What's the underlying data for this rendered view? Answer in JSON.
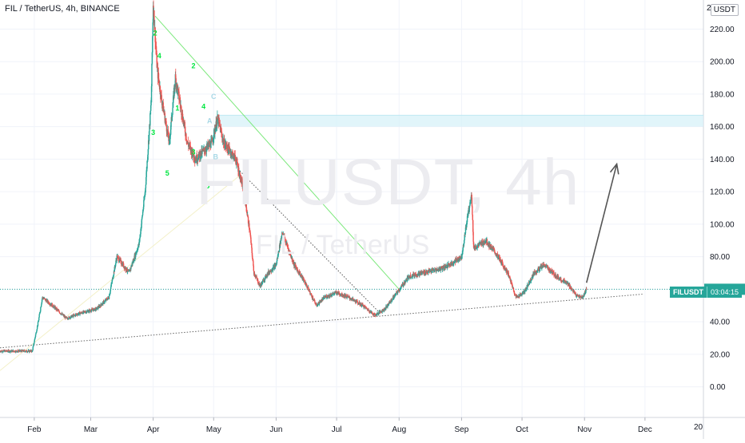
{
  "header": {
    "symbol_title": "FIL / TetherUS, 4h, BINANCE",
    "currency": "USDT",
    "top_axis_clip": "2"
  },
  "watermark": {
    "main": "FILUSDT, 4h",
    "sub": "FIL / TetherUS"
  },
  "price_badge": {
    "symbol": "FILUSDT",
    "countdown": "03:04:15"
  },
  "footer_clip": "20",
  "colors": {
    "up": "#26a69a",
    "down": "#ef5350",
    "grid": "#f0f3fa",
    "resistance_zone": "#d4f1f8",
    "wave_label": "#00e640"
  },
  "chart_data": {
    "type": "candlestick",
    "symbol": "FIL / TetherUS",
    "timeframe": "4h",
    "exchange": "BINANCE",
    "x_ticks": [
      "Feb",
      "Mar",
      "Apr",
      "May",
      "Jun",
      "Jul",
      "Aug",
      "Sep",
      "Oct",
      "Nov",
      "Dec"
    ],
    "y_ticks": [
      "0.00",
      "20.00",
      "40.00",
      "60.00",
      "80.00",
      "100.00",
      "120.00",
      "140.00",
      "160.00",
      "180.00",
      "200.00",
      "220.00"
    ],
    "ylim": [
      -10,
      232
    ],
    "last_price": 60.0,
    "price_path": [
      [
        "2021-01-15",
        22
      ],
      [
        "2021-01-31",
        22
      ],
      [
        "2021-02-03",
        40
      ],
      [
        "2021-02-05",
        55
      ],
      [
        "2021-02-10",
        50
      ],
      [
        "2021-02-17",
        42
      ],
      [
        "2021-02-23",
        45
      ],
      [
        "2021-03-04",
        48
      ],
      [
        "2021-03-10",
        55
      ],
      [
        "2021-03-14",
        80
      ],
      [
        "2021-03-20",
        70
      ],
      [
        "2021-03-25",
        88
      ],
      [
        "2021-03-28",
        120
      ],
      [
        "2021-03-31",
        175
      ],
      [
        "2021-04-01",
        236
      ],
      [
        "2021-04-03",
        195
      ],
      [
        "2021-04-05",
        178
      ],
      [
        "2021-04-09",
        150
      ],
      [
        "2021-04-12",
        190
      ],
      [
        "2021-04-15",
        170
      ],
      [
        "2021-04-18",
        150
      ],
      [
        "2021-04-22",
        140
      ],
      [
        "2021-04-26",
        145
      ],
      [
        "2021-04-30",
        150
      ],
      [
        "2021-05-03",
        165
      ],
      [
        "2021-05-06",
        150
      ],
      [
        "2021-05-12",
        140
      ],
      [
        "2021-05-16",
        120
      ],
      [
        "2021-05-19",
        95
      ],
      [
        "2021-05-21",
        70
      ],
      [
        "2021-05-24",
        62
      ],
      [
        "2021-05-28",
        70
      ],
      [
        "2021-06-01",
        75
      ],
      [
        "2021-06-04",
        95
      ],
      [
        "2021-06-10",
        75
      ],
      [
        "2021-06-15",
        65
      ],
      [
        "2021-06-21",
        50
      ],
      [
        "2021-06-25",
        55
      ],
      [
        "2021-07-01",
        58
      ],
      [
        "2021-07-07",
        55
      ],
      [
        "2021-07-14",
        50
      ],
      [
        "2021-07-20",
        44
      ],
      [
        "2021-07-25",
        48
      ],
      [
        "2021-07-31",
        58
      ],
      [
        "2021-08-06",
        68
      ],
      [
        "2021-08-12",
        70
      ],
      [
        "2021-08-20",
        72
      ],
      [
        "2021-08-26",
        75
      ],
      [
        "2021-09-01",
        80
      ],
      [
        "2021-09-04",
        105
      ],
      [
        "2021-09-06",
        118
      ],
      [
        "2021-09-07",
        85
      ],
      [
        "2021-09-13",
        90
      ],
      [
        "2021-09-18",
        82
      ],
      [
        "2021-09-24",
        70
      ],
      [
        "2021-09-28",
        55
      ],
      [
        "2021-10-02",
        58
      ],
      [
        "2021-10-07",
        70
      ],
      [
        "2021-10-12",
        75
      ],
      [
        "2021-10-18",
        68
      ],
      [
        "2021-10-24",
        63
      ],
      [
        "2021-10-28",
        56
      ],
      [
        "2021-10-31",
        55
      ],
      [
        "2021-11-02",
        60
      ]
    ],
    "annotations": {
      "upper_trendline": [
        [
          "2021-04-02",
          228
        ],
        [
          "2021-08-01",
          60
        ]
      ],
      "inner_trendline": [
        [
          "2021-05-13",
          134
        ],
        [
          "2021-07-22",
          46
        ]
      ],
      "faint_trendline": [
        [
          "2021-01-15",
          10
        ],
        [
          "2021-05-14",
          130
        ]
      ],
      "lower_trendline": [
        [
          "2021-01-15",
          24
        ],
        [
          "2021-11-30",
          57
        ]
      ],
      "resistance_zone": [
        160,
        167
      ],
      "projection_arrow": [
        [
          "2021-11-02",
          64
        ],
        [
          "2021-11-17",
          137
        ]
      ],
      "wave_labels": [
        {
          "text": "2",
          "date": "2021-04-02",
          "price": 216,
          "color": "#00e640"
        },
        {
          "text": "4",
          "date": "2021-04-04",
          "price": 202,
          "color": "#00e640"
        },
        {
          "text": "2",
          "date": "2021-04-21",
          "price": 196,
          "color": "#00e640"
        },
        {
          "text": "1",
          "date": "2021-04-13",
          "price": 170,
          "color": "#00e640"
        },
        {
          "text": "3",
          "date": "2021-04-01",
          "price": 155,
          "color": "#00e640"
        },
        {
          "text": "4",
          "date": "2021-04-26",
          "price": 171,
          "color": "#00e640"
        },
        {
          "text": "5",
          "date": "2021-04-08",
          "price": 130,
          "color": "#00e640"
        },
        {
          "text": "3",
          "date": "2021-04-21",
          "price": 143,
          "color": "#00e640"
        },
        {
          "text": "5",
          "date": "2021-04-28",
          "price": 122,
          "color": "#00e640"
        },
        {
          "text": "C",
          "date": "2021-05-01",
          "price": 177,
          "color": "#a8d8e6"
        },
        {
          "text": "A",
          "date": "2021-04-29",
          "price": 162,
          "color": "#a8d8e6"
        },
        {
          "text": "B",
          "date": "2021-05-02",
          "price": 140,
          "color": "#a8d8e6"
        }
      ]
    }
  }
}
